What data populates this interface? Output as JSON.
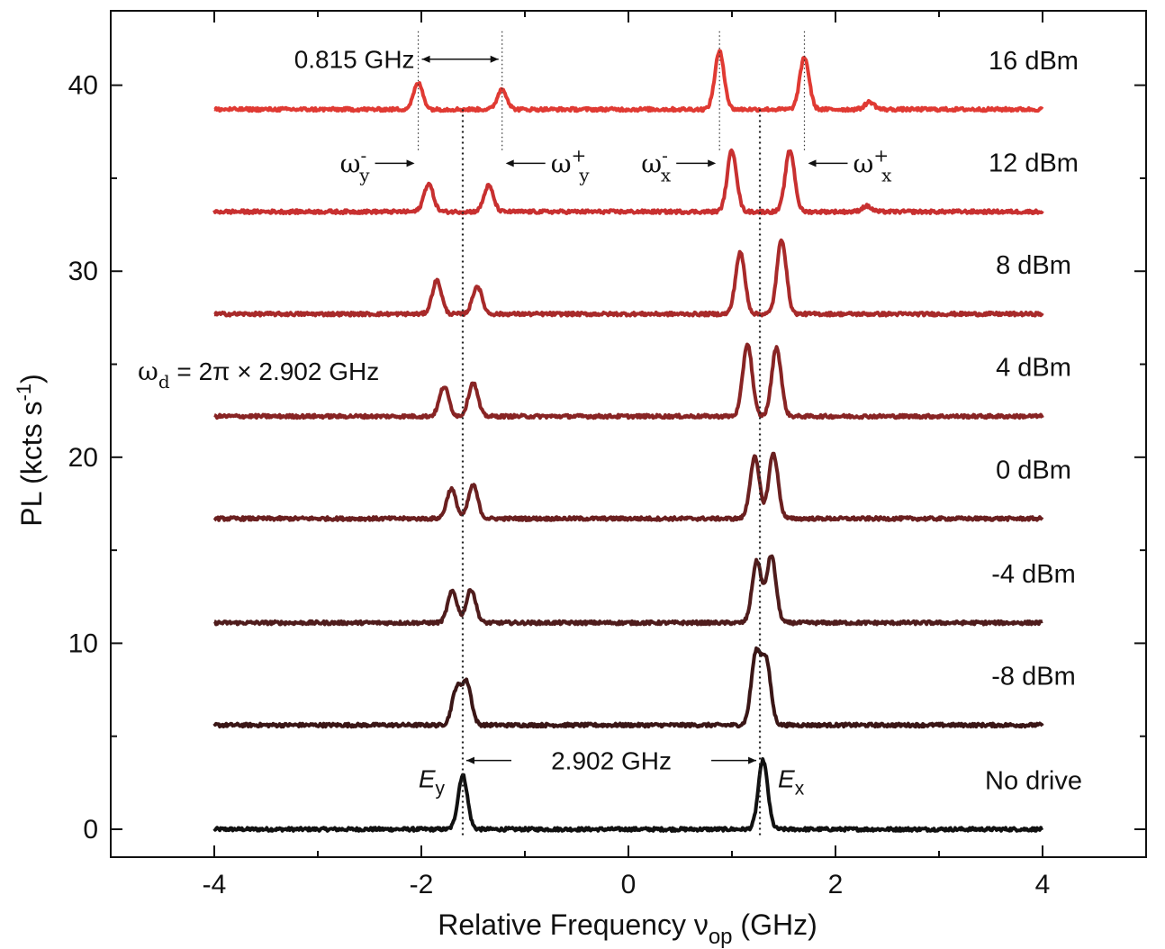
{
  "chart_data": {
    "type": "line",
    "title": "",
    "xlabel": "Relative Frequency ν",
    "xlabel_sub": "op",
    "xlabel_unit": " (GHz)",
    "ylabel": "PL (kcts s",
    "ylabel_sup": "-1",
    "ylabel_end": ")",
    "xlim": [
      -5,
      5
    ],
    "ylim": [
      -1.5,
      44
    ],
    "xticks": [
      -4,
      -2,
      0,
      2,
      4
    ],
    "yticks": [
      0,
      10,
      20,
      30,
      40
    ],
    "x_range": [
      -4,
      4
    ],
    "peak_width": 0.045,
    "series": [
      {
        "name": "No drive",
        "offset": 0.0,
        "color": "#111111",
        "peaks": [
          {
            "x": -1.6,
            "h": 2.9
          },
          {
            "x": 1.3,
            "h": 3.7
          }
        ]
      },
      {
        "name": "-8 dBm",
        "offset": 5.6,
        "color": "#3a1616",
        "peaks": [
          {
            "x": -1.66,
            "h": 1.9
          },
          {
            "x": -1.56,
            "h": 2.2
          },
          {
            "x": 1.23,
            "h": 3.7
          },
          {
            "x": 1.33,
            "h": 3.4
          }
        ]
      },
      {
        "name": "-4 dBm",
        "offset": 11.1,
        "color": "#4f1c1c",
        "peaks": [
          {
            "x": -1.7,
            "h": 1.7
          },
          {
            "x": -1.52,
            "h": 1.8
          },
          {
            "x": 1.24,
            "h": 3.3
          },
          {
            "x": 1.38,
            "h": 3.6
          }
        ]
      },
      {
        "name": "0 dBm",
        "offset": 16.7,
        "color": "#6b2020",
        "peaks": [
          {
            "x": -1.71,
            "h": 1.6
          },
          {
            "x": -1.5,
            "h": 1.8
          },
          {
            "x": 1.22,
            "h": 3.3
          },
          {
            "x": 1.4,
            "h": 3.5
          }
        ]
      },
      {
        "name": "4 dBm",
        "offset": 22.2,
        "color": "#882424",
        "peaks": [
          {
            "x": -1.78,
            "h": 1.6
          },
          {
            "x": -1.5,
            "h": 1.8
          },
          {
            "x": 1.15,
            "h": 3.9
          },
          {
            "x": 1.43,
            "h": 3.7
          }
        ]
      },
      {
        "name": "8 dBm",
        "offset": 27.7,
        "color": "#a82a2a",
        "peaks": [
          {
            "x": -1.85,
            "h": 1.8
          },
          {
            "x": -1.46,
            "h": 1.5
          },
          {
            "x": 1.08,
            "h": 3.3
          },
          {
            "x": 1.48,
            "h": 4.0
          }
        ]
      },
      {
        "name": "12 dBm",
        "offset": 33.2,
        "color": "#c83030",
        "peaks": [
          {
            "x": -1.93,
            "h": 1.5
          },
          {
            "x": -1.35,
            "h": 1.4
          },
          {
            "x": 1.0,
            "h": 3.3
          },
          {
            "x": 1.56,
            "h": 3.3
          },
          {
            "x": 2.3,
            "h": 0.3
          }
        ]
      },
      {
        "name": "16 dBm",
        "offset": 38.7,
        "color": "#e03a33",
        "peaks": [
          {
            "x": -2.03,
            "h": 1.4
          },
          {
            "x": -1.22,
            "h": 1.1
          },
          {
            "x": 0.88,
            "h": 3.1
          },
          {
            "x": 1.7,
            "h": 2.8
          },
          {
            "x": 2.33,
            "h": 0.4
          }
        ]
      }
    ],
    "reference_lines": [
      {
        "name": "Ey",
        "x": -1.6
      },
      {
        "name": "Ex",
        "x": 1.27
      }
    ],
    "annotations": {
      "top_split_label": "0.815 GHz",
      "top_split_from": -2.03,
      "top_split_to": -1.22,
      "top_split_y": 41.4,
      "top_markers": [
        -2.03,
        -1.22,
        0.88,
        1.7
      ],
      "wy_minus": {
        "base": "ω",
        "sub": "y",
        "sup": "-"
      },
      "wy_plus": {
        "base": "ω",
        "sub": "y",
        "sup": "+"
      },
      "wx_minus": {
        "base": "ω",
        "sub": "x",
        "sup": "-"
      },
      "wx_plus": {
        "base": "ω",
        "sub": "x",
        "sup": "+"
      },
      "drive_label_main": "ω",
      "drive_label_sub": "d",
      "drive_label_rest": " = 2π × 2.902 GHz",
      "bottom_split_label": "2.902 GHz",
      "bottom_split_y": 3.7,
      "ey_label": "E",
      "ey_sub": "y",
      "ex_label": "E",
      "ex_sub": "x"
    }
  }
}
